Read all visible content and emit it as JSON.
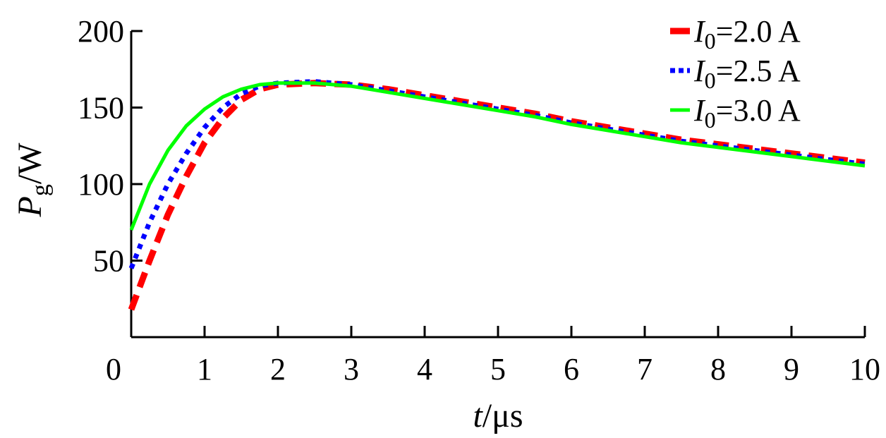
{
  "chart_data": {
    "type": "line",
    "title": "",
    "xlabel": {
      "symbol": "t",
      "sep": "/",
      "unit": "μs"
    },
    "ylabel": {
      "symbol": "P",
      "subscript": "g",
      "sep": "/",
      "unit": "W"
    },
    "xlim": [
      0,
      10
    ],
    "ylim": [
      0,
      200
    ],
    "x_ticks": [
      0,
      1,
      2,
      3,
      4,
      5,
      6,
      7,
      8,
      9,
      10
    ],
    "y_ticks": [
      50,
      100,
      150,
      200
    ],
    "grid": false,
    "legend_position": "top-right",
    "x": [
      0,
      0.25,
      0.5,
      0.75,
      1.0,
      1.25,
      1.5,
      1.75,
      2.0,
      2.5,
      3.0,
      3.5,
      4.0,
      4.5,
      5.0,
      5.5,
      6.0,
      6.5,
      7.0,
      7.5,
      8.0,
      8.5,
      9.0,
      9.5,
      10.0
    ],
    "series": [
      {
        "name": {
          "symbol": "I",
          "subscript": "0",
          "value": "=2.0 A"
        },
        "color": "#ff0000",
        "dash": "dash",
        "values": [
          18,
          50,
          80,
          105,
          127,
          143,
          155,
          162,
          165,
          166,
          165,
          162,
          158,
          154,
          150,
          146,
          141,
          137,
          133,
          129,
          126,
          123,
          120,
          117,
          114
        ]
      },
      {
        "name": {
          "symbol": "I",
          "subscript": "0",
          "value": "=2.5 A"
        },
        "color": "#0000ff",
        "dash": "dot",
        "values": [
          45,
          75,
          100,
          120,
          137,
          150,
          159,
          164,
          166,
          167,
          165,
          161,
          157,
          153,
          149,
          145,
          140,
          136,
          132,
          128,
          125,
          122,
          119,
          116,
          113
        ]
      },
      {
        "name": {
          "symbol": "I",
          "subscript": "0",
          "value": "=3.0 A"
        },
        "color": "#00ff00",
        "dash": "solid",
        "values": [
          70,
          100,
          122,
          138,
          149,
          157,
          162,
          165,
          166,
          166,
          164,
          160,
          156,
          152,
          148,
          144,
          139,
          135,
          131,
          127,
          124,
          121,
          118,
          115,
          112
        ]
      }
    ]
  }
}
